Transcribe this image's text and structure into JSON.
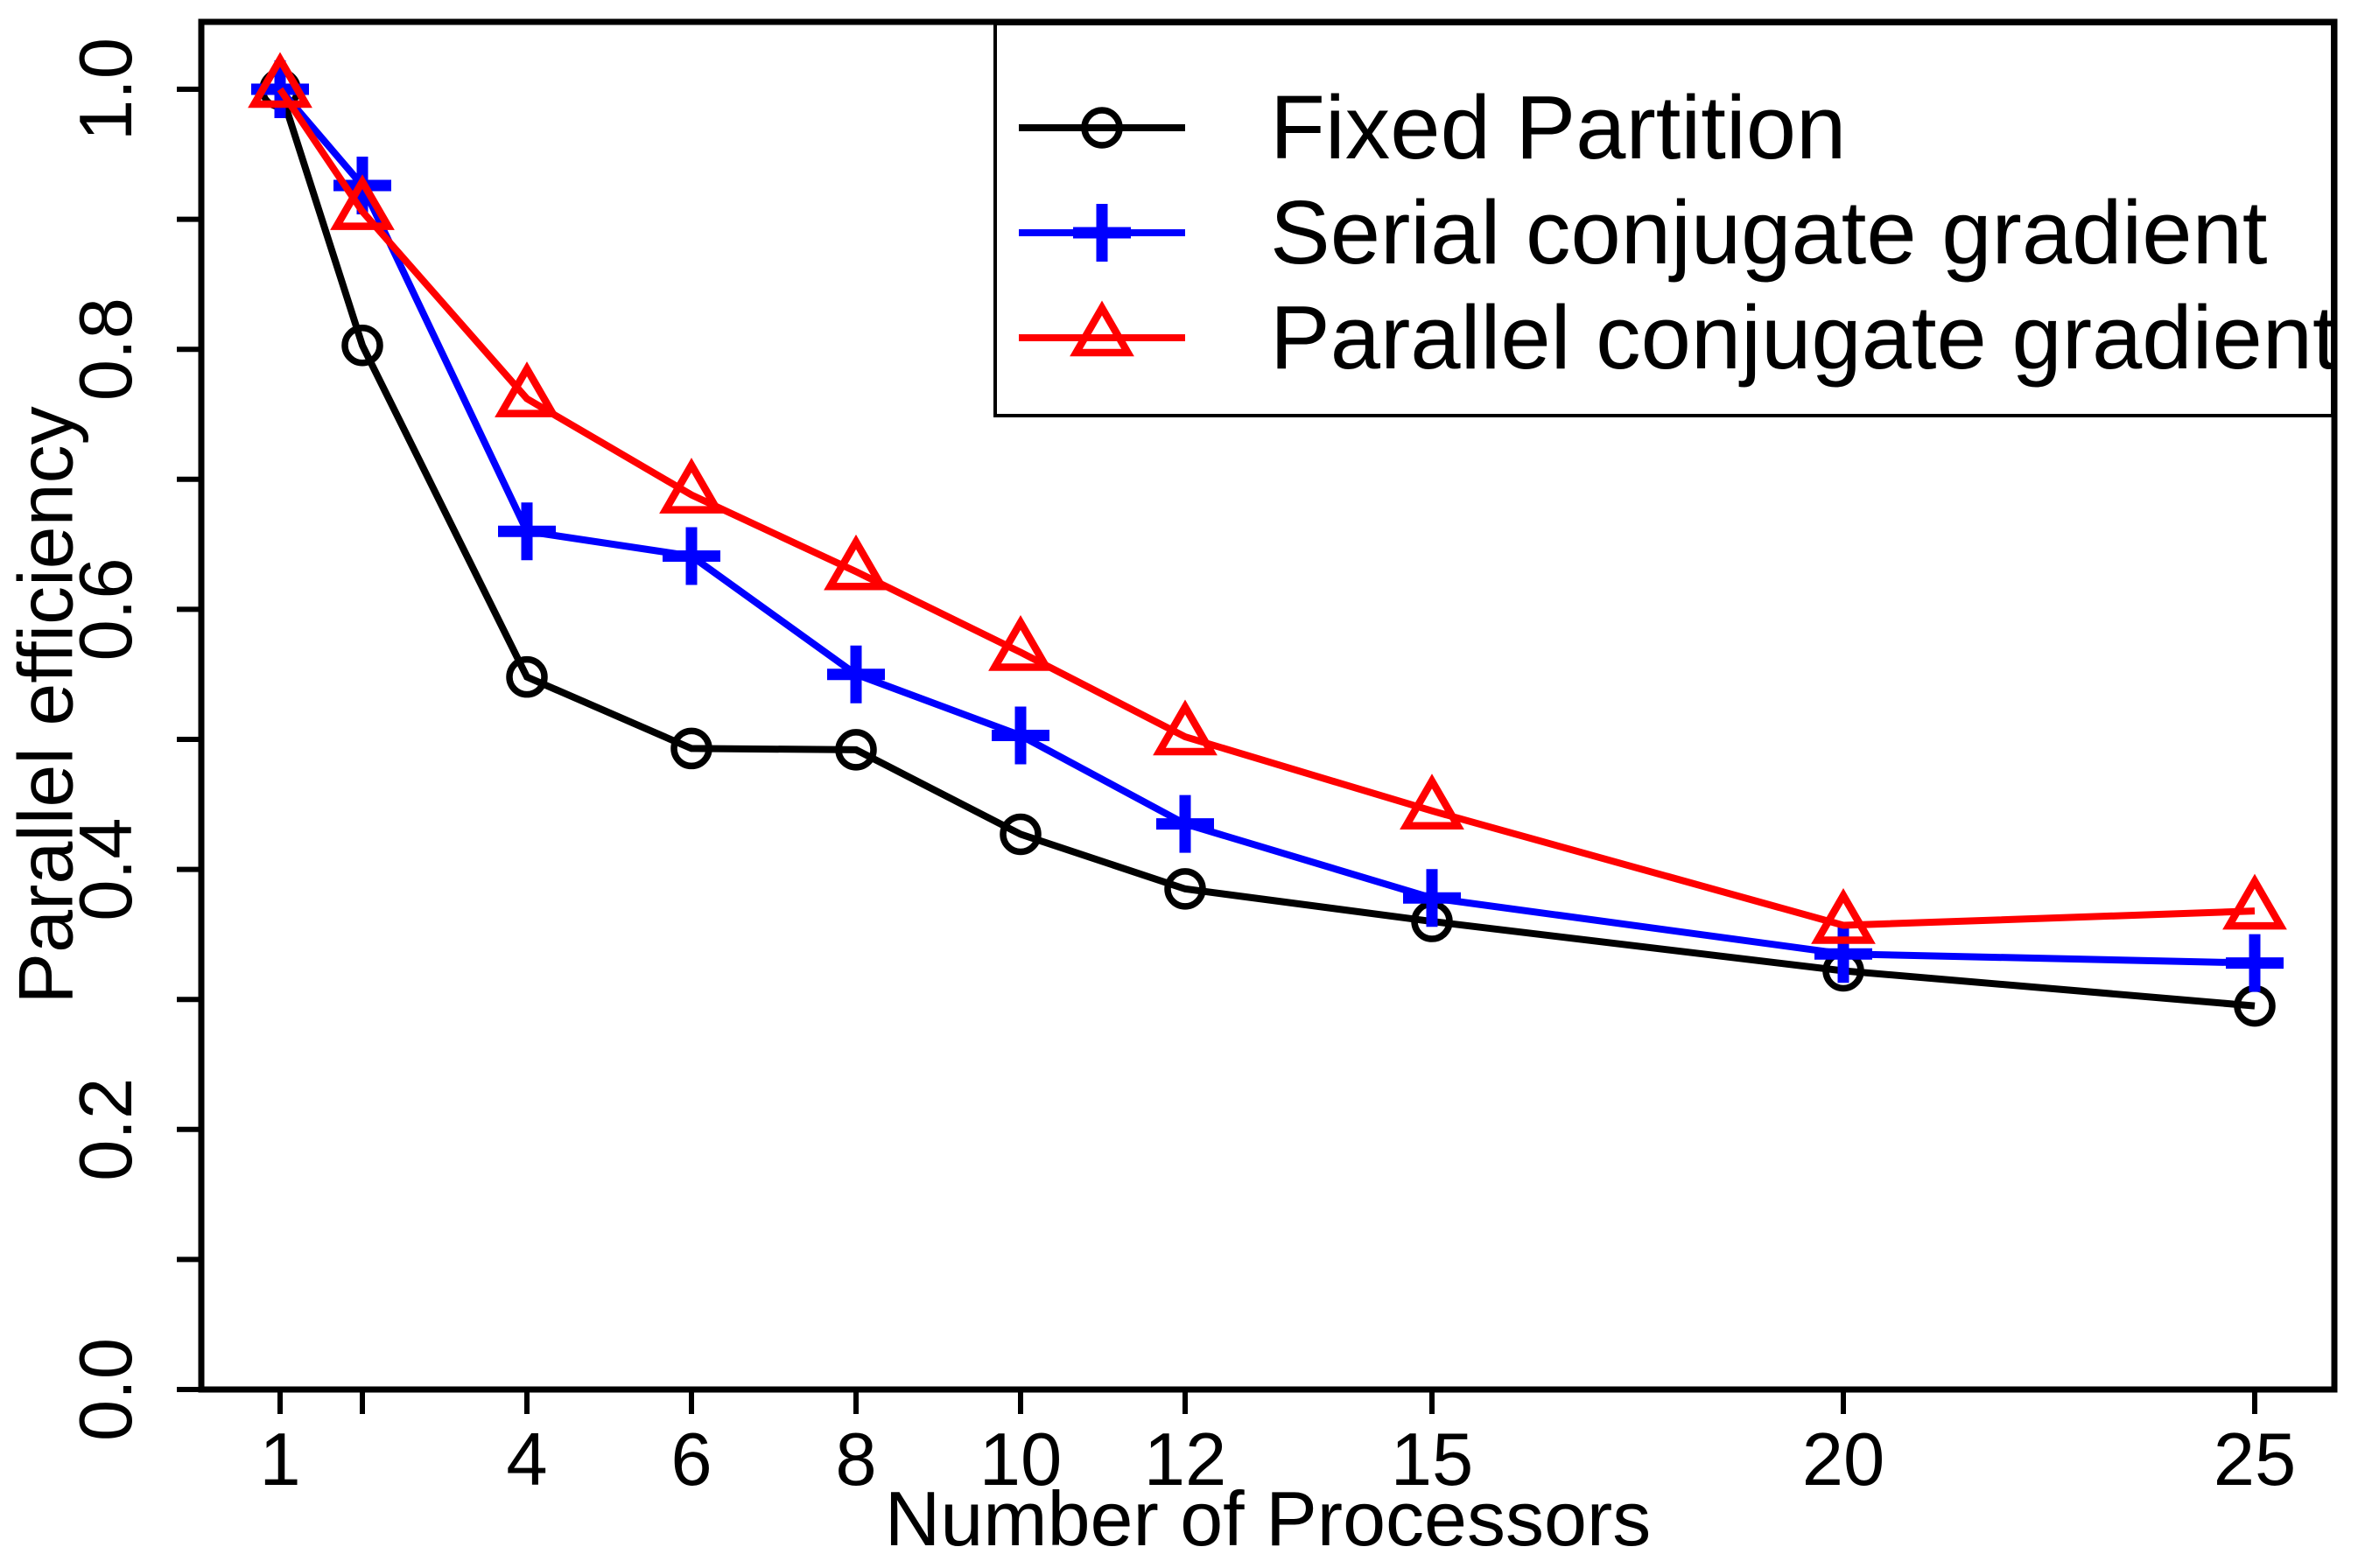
{
  "figure": {
    "background": "#ffffff",
    "axis_color": "#000000"
  },
  "chart_data": {
    "type": "line",
    "title": "",
    "xlabel": "Number of Processors",
    "ylabel": "Parallel efficiency",
    "x": [
      1,
      2,
      4,
      6,
      8,
      10,
      12,
      15,
      20,
      25
    ],
    "x_tick_labels": [
      "1",
      "",
      "4",
      "6",
      "8",
      "10",
      "12",
      "15",
      "20",
      "25"
    ],
    "y_major_ticks": [
      0.0,
      0.2,
      0.4,
      0.6,
      0.8,
      1.0
    ],
    "y_major_tick_labels": [
      "0.0",
      "0.2",
      "0.4",
      "0.6",
      "0.8",
      "1.0"
    ],
    "y_minor_tick_step": 0.1,
    "xlim": [
      0.04,
      25.96
    ],
    "ylim": [
      0.0,
      1.052
    ],
    "grid": false,
    "legend_position": "top-right",
    "series": [
      {
        "name": "Fixed Partition",
        "color": "#000000",
        "marker": "circle",
        "values": [
          1.0,
          0.803,
          0.548,
          0.493,
          0.492,
          0.427,
          0.385,
          0.36,
          0.322,
          0.295
        ]
      },
      {
        "name": "Serial conjugate gradient",
        "color": "#0000ff",
        "marker": "plus",
        "values": [
          1.0,
          0.926,
          0.66,
          0.641,
          0.55,
          0.503,
          0.435,
          0.378,
          0.335,
          0.328
        ]
      },
      {
        "name": "Parallel conjugate gradient",
        "color": "#ff0000",
        "marker": "triangle",
        "values": [
          1.0,
          0.906,
          0.762,
          0.688,
          0.629,
          0.567,
          0.502,
          0.445,
          0.357,
          0.368
        ]
      }
    ]
  }
}
